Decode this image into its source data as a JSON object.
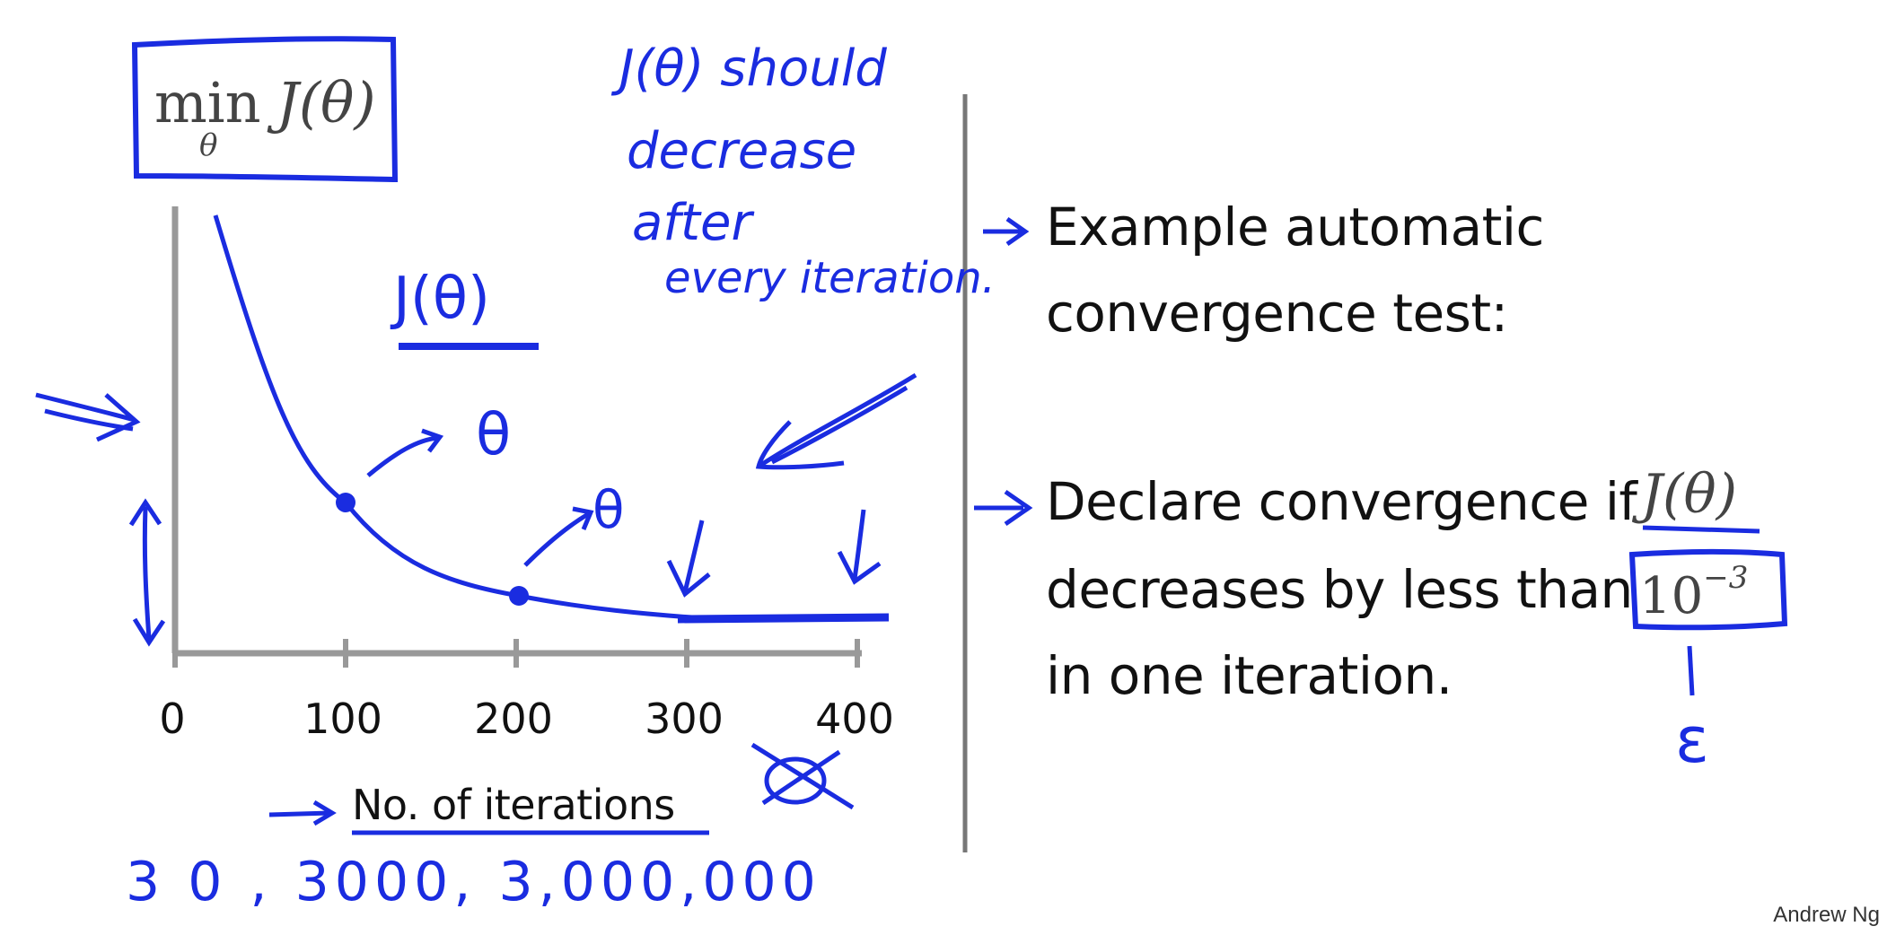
{
  "objective": {
    "min": "min",
    "sub": "θ",
    "expr": "J(θ)"
  },
  "plot": {
    "x_ticks": [
      "0",
      "100",
      "200",
      "300",
      "400"
    ],
    "xlabel": "No. of iterations"
  },
  "annotations": {
    "should_decrease": [
      "J(θ) should",
      "decrease",
      "after",
      "every iteration."
    ],
    "j_theta": "J(θ)",
    "theta_1": "θ",
    "theta_2": "θ",
    "iteration_counts": "3 0 ,   3000,  3,000,000",
    "epsilon": "ε"
  },
  "slide": {
    "test_line1": "Example automatic",
    "test_line2": "convergence test:",
    "declare_line1": "Declare convergence if",
    "declare_line2": "decreases by less than",
    "declare_line3": "in one iteration.",
    "j_expr": "J(θ)",
    "threshold_base": "10",
    "threshold_exp": "−3"
  },
  "credit": "Andrew Ng",
  "colors": {
    "ink": "#1a2ce0",
    "axis": "#999999",
    "text": "#111111"
  }
}
